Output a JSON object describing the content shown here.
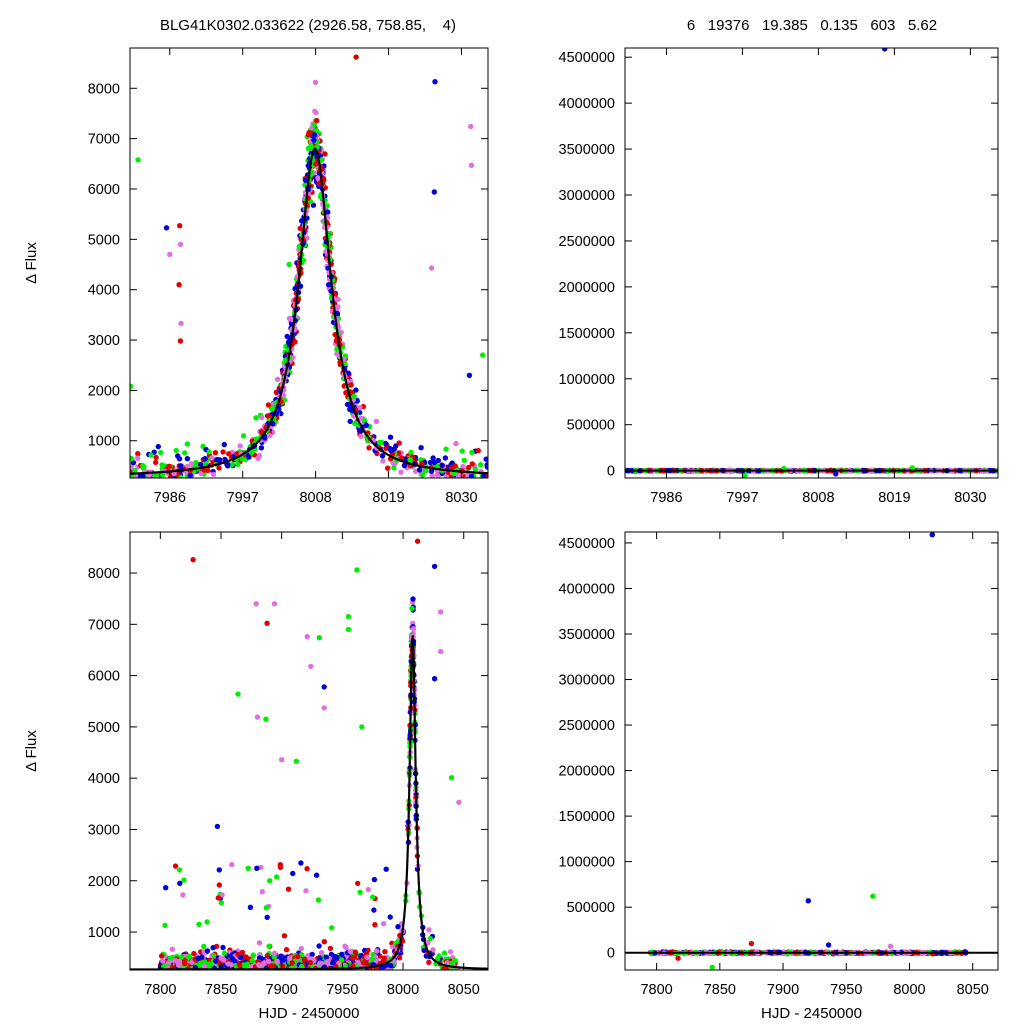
{
  "header": {
    "left": "BLG41K0302.033622 (2926.58, 758.85,    4)",
    "right": "6   19376   19.385   0.135   603   5.62"
  },
  "colors": {
    "red": "#e00000",
    "blue": "#0000d8",
    "magenta": "#e070e0",
    "green": "#00ee00",
    "model": "#000000"
  },
  "chart_data": [
    {
      "type": "scatter",
      "panel": "top-left",
      "title": "",
      "xlabel": "",
      "ylabel": "Δ Flux",
      "xlim": [
        7980,
        8034
      ],
      "ylim": [
        260,
        8800
      ],
      "xticks": [
        7986,
        7997,
        8008,
        8019,
        8030
      ],
      "yticks": [
        1000,
        2000,
        3000,
        4000,
        5000,
        6000,
        7000,
        8000
      ],
      "model": {
        "t0": 8007.9,
        "tE": 3.0,
        "peak": 6800,
        "base": 270
      },
      "outliers": [
        {
          "c": "green",
          "x": 7981.2,
          "y": 6580
        },
        {
          "c": "blue",
          "x": 7985.5,
          "y": 5230
        },
        {
          "c": "red",
          "x": 7987.5,
          "y": 5270
        },
        {
          "c": "magenta",
          "x": 7987.6,
          "y": 4900
        },
        {
          "c": "red",
          "x": 7987.4,
          "y": 4100
        },
        {
          "c": "magenta",
          "x": 7986.0,
          "y": 4700
        },
        {
          "c": "red",
          "x": 7987.6,
          "y": 2980
        },
        {
          "c": "magenta",
          "x": 7987.7,
          "y": 3330
        },
        {
          "c": "red",
          "x": 8014.1,
          "y": 8620
        },
        {
          "c": "blue",
          "x": 8026.0,
          "y": 8130
        },
        {
          "c": "blue",
          "x": 8025.9,
          "y": 5940
        },
        {
          "c": "magenta",
          "x": 8025.5,
          "y": 4430
        },
        {
          "c": "magenta",
          "x": 8031.4,
          "y": 7240
        },
        {
          "c": "magenta",
          "x": 8031.5,
          "y": 6470
        },
        {
          "c": "green",
          "x": 8033.2,
          "y": 2700
        },
        {
          "c": "blue",
          "x": 8031.2,
          "y": 2300
        },
        {
          "c": "green",
          "x": 7980.1,
          "y": 2080
        },
        {
          "c": "green",
          "x": 8004.0,
          "y": 4500
        }
      ]
    },
    {
      "type": "scatter",
      "panel": "top-right",
      "title": "",
      "xlabel": "",
      "ylabel": "",
      "xlim": [
        7980,
        8034
      ],
      "ylim": [
        -80000,
        4600000
      ],
      "xticks": [
        7986,
        7997,
        8008,
        8019,
        8030
      ],
      "yticks": [
        0,
        500000,
        1000000,
        1500000,
        2000000,
        2500000,
        3000000,
        3500000,
        4000000,
        4500000
      ],
      "outliers": [
        {
          "c": "blue",
          "x": 8017.6,
          "y": 4590000
        },
        {
          "c": "green",
          "x": 7997.3,
          "y": -55000
        },
        {
          "c": "blue",
          "x": 8010.5,
          "y": -35000
        },
        {
          "c": "green",
          "x": 8003.0,
          "y": 25000
        },
        {
          "c": "green",
          "x": 8021.6,
          "y": 30000
        }
      ]
    },
    {
      "type": "scatter",
      "panel": "bottom-left",
      "title": "",
      "xlabel": "HJD - 2450000",
      "ylabel": "Δ Flux",
      "xlim": [
        7775,
        8070
      ],
      "ylim": [
        260,
        8800
      ],
      "xticks": [
        7800,
        7850,
        7900,
        7950,
        8000,
        8050
      ],
      "yticks": [
        1000,
        2000,
        3000,
        4000,
        5000,
        6000,
        7000,
        8000
      ],
      "model": {
        "t0": 8007.9,
        "tE": 3.0,
        "peak": 6800,
        "base": 270
      },
      "outliers": [
        {
          "c": "red",
          "x": 7827,
          "y": 8260
        },
        {
          "c": "magenta",
          "x": 7879,
          "y": 7400
        },
        {
          "c": "magenta",
          "x": 7894,
          "y": 7400
        },
        {
          "c": "red",
          "x": 7888,
          "y": 7020
        },
        {
          "c": "green",
          "x": 7955,
          "y": 7150
        },
        {
          "c": "green",
          "x": 7962,
          "y": 8060
        },
        {
          "c": "green",
          "x": 7955,
          "y": 6900
        },
        {
          "c": "green",
          "x": 7931,
          "y": 6740
        },
        {
          "c": "magenta",
          "x": 7921,
          "y": 6760
        },
        {
          "c": "magenta",
          "x": 7924,
          "y": 6180
        },
        {
          "c": "green",
          "x": 7864,
          "y": 5640
        },
        {
          "c": "blue",
          "x": 7935,
          "y": 5780
        },
        {
          "c": "magenta",
          "x": 7935,
          "y": 5370
        },
        {
          "c": "green",
          "x": 7887,
          "y": 5150
        },
        {
          "c": "magenta",
          "x": 7880,
          "y": 5190
        },
        {
          "c": "red",
          "x": 8012,
          "y": 8620
        },
        {
          "c": "blue",
          "x": 8026,
          "y": 8130
        },
        {
          "c": "magenta",
          "x": 8031,
          "y": 7240
        },
        {
          "c": "magenta",
          "x": 8031,
          "y": 6470
        },
        {
          "c": "blue",
          "x": 8026,
          "y": 5940
        },
        {
          "c": "green",
          "x": 8040,
          "y": 4010
        },
        {
          "c": "magenta",
          "x": 8046,
          "y": 3530
        },
        {
          "c": "blue",
          "x": 7847,
          "y": 3060
        },
        {
          "c": "green",
          "x": 7966,
          "y": 5000
        },
        {
          "c": "magenta",
          "x": 7900,
          "y": 4360
        },
        {
          "c": "green",
          "x": 7912,
          "y": 4330
        }
      ]
    },
    {
      "type": "scatter",
      "panel": "bottom-right",
      "title": "",
      "xlabel": "HJD - 2450000",
      "ylabel": "",
      "xlim": [
        7775,
        8070
      ],
      "ylim": [
        -190000,
        4620000
      ],
      "xticks": [
        7800,
        7850,
        7900,
        7950,
        8000,
        8050
      ],
      "yticks": [
        0,
        500000,
        1000000,
        1500000,
        2000000,
        2500000,
        3000000,
        3500000,
        4000000,
        4500000
      ],
      "outliers": [
        {
          "c": "blue",
          "x": 8018,
          "y": 4590000
        },
        {
          "c": "green",
          "x": 7971,
          "y": 620000
        },
        {
          "c": "blue",
          "x": 7920,
          "y": 570000
        },
        {
          "c": "red",
          "x": 7875,
          "y": 100000
        },
        {
          "c": "blue",
          "x": 7936,
          "y": 85000
        },
        {
          "c": "green",
          "x": 7844,
          "y": -160000
        },
        {
          "c": "red",
          "x": 7817,
          "y": -60000
        },
        {
          "c": "magenta",
          "x": 7985,
          "y": 70000
        }
      ]
    }
  ]
}
